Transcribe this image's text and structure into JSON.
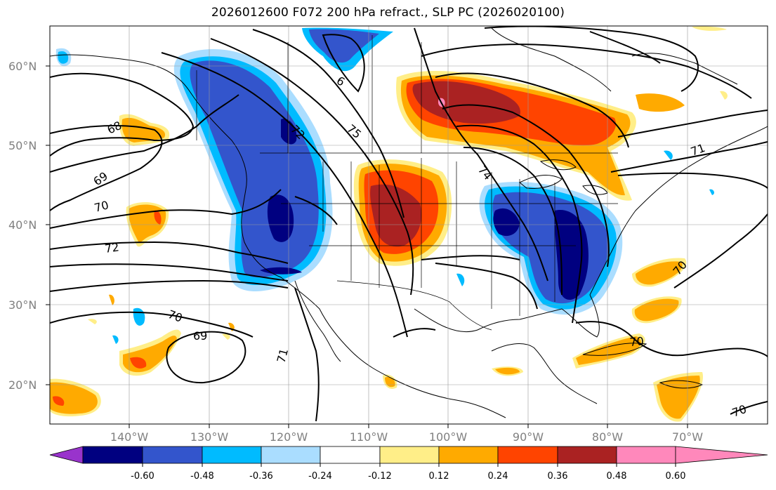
{
  "title": "2026012600 F072 200 hPa refract., SLP PC (2026020100)",
  "lat_labels": [
    "60°N",
    "50°N",
    "40°N",
    "30°N",
    "20°N"
  ],
  "lon_labels": [
    "140°W",
    "130°W",
    "120°W",
    "110°W",
    "100°W",
    "90°W",
    "80°W",
    "70°W"
  ],
  "contour_labels": [
    "68",
    "69",
    "70",
    "72",
    "69",
    "70",
    "71",
    "72",
    "75",
    "74",
    "71",
    "70",
    "70",
    "70",
    "6"
  ],
  "colorbar": {
    "colors": [
      "#9933cc",
      "#000080",
      "#3355cc",
      "#00bbff",
      "#aaddff",
      "#ffffff",
      "#ffee88",
      "#ffaa00",
      "#ff4400",
      "#aa2222",
      "#ff88bb"
    ],
    "tick_labels": [
      "-0.60",
      "-0.48",
      "-0.36",
      "-0.24",
      "-0.12",
      "0.12",
      "0.24",
      "0.36",
      "0.48",
      "0.60"
    ]
  }
}
